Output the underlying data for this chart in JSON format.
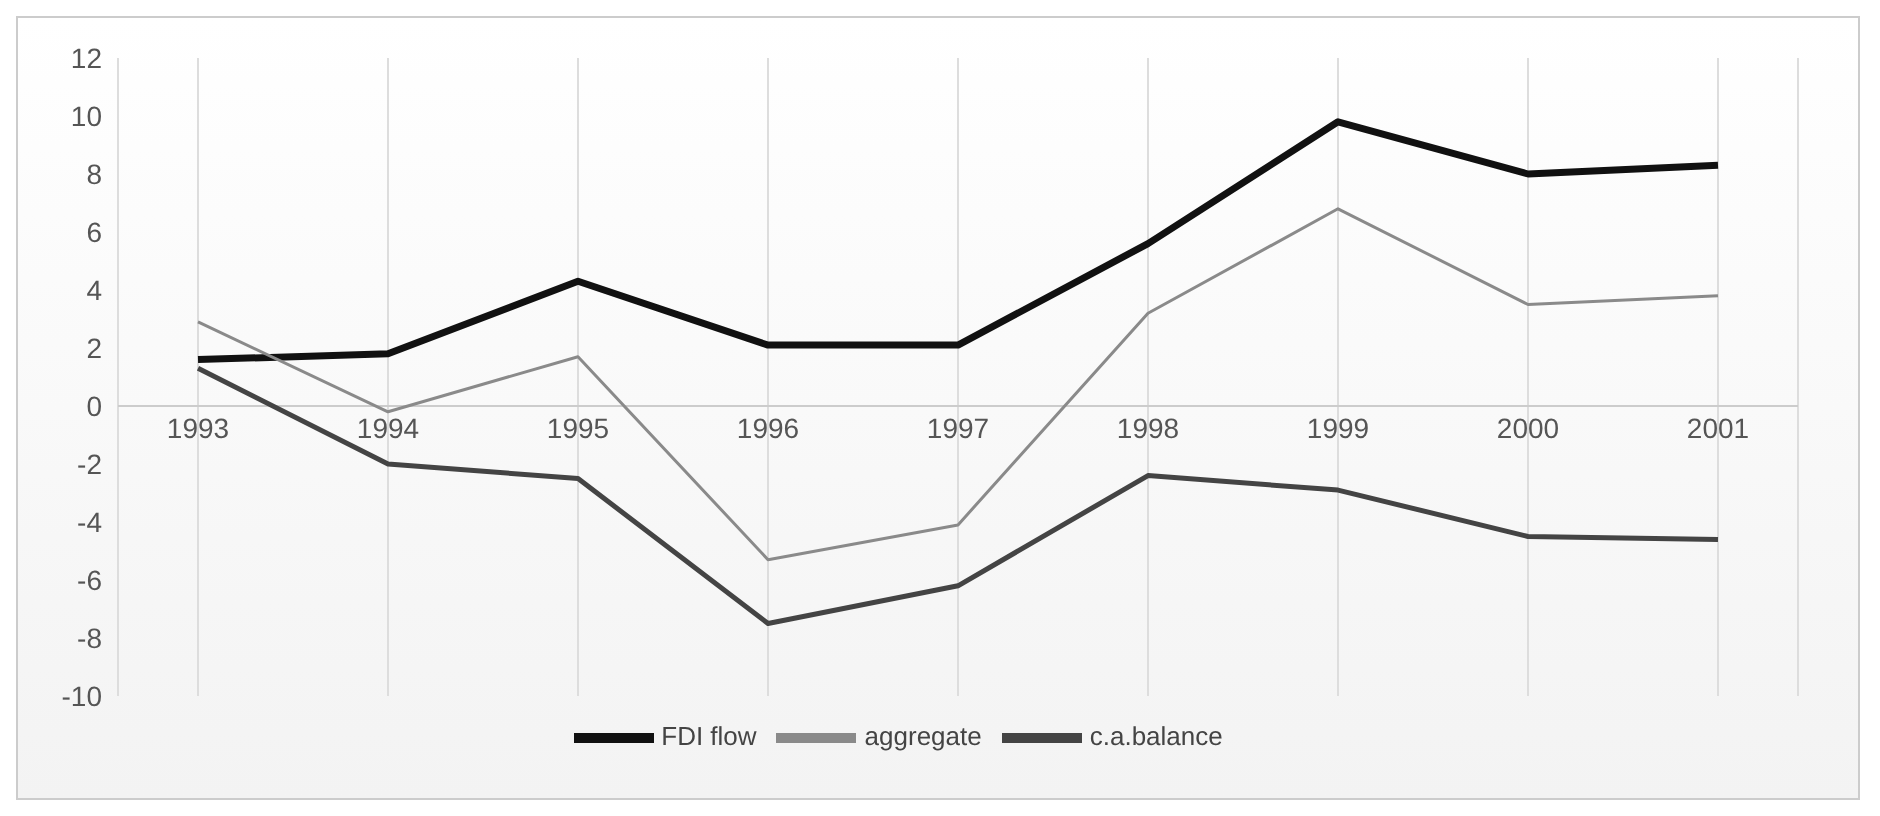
{
  "chart_data": {
    "type": "line",
    "categories": [
      "1993",
      "1994",
      "1995",
      "1996",
      "1997",
      "1998",
      "1999",
      "2000",
      "2001"
    ],
    "series": [
      {
        "name": "FDI flow",
        "color": "#111111",
        "values": [
          1.6,
          1.8,
          4.3,
          2.1,
          2.1,
          5.6,
          9.8,
          8.0,
          8.3
        ]
      },
      {
        "name": "c.a.balance",
        "color": "#444444",
        "values": [
          1.3,
          -2.0,
          -2.5,
          -7.5,
          -6.2,
          -2.4,
          -2.9,
          -4.5,
          -4.6
        ]
      },
      {
        "name": "aggregate",
        "color": "#8a8a8a",
        "values": [
          2.9,
          -0.2,
          1.7,
          -5.3,
          -4.1,
          3.2,
          6.8,
          3.5,
          3.8
        ]
      }
    ],
    "ylim": [
      -10,
      12
    ],
    "yticks": [
      -10,
      -8,
      -6,
      -4,
      -2,
      0,
      2,
      4,
      6,
      8,
      10,
      12
    ],
    "grid": "x",
    "legend": "bottom",
    "marker": "none",
    "line_style": "solid"
  }
}
